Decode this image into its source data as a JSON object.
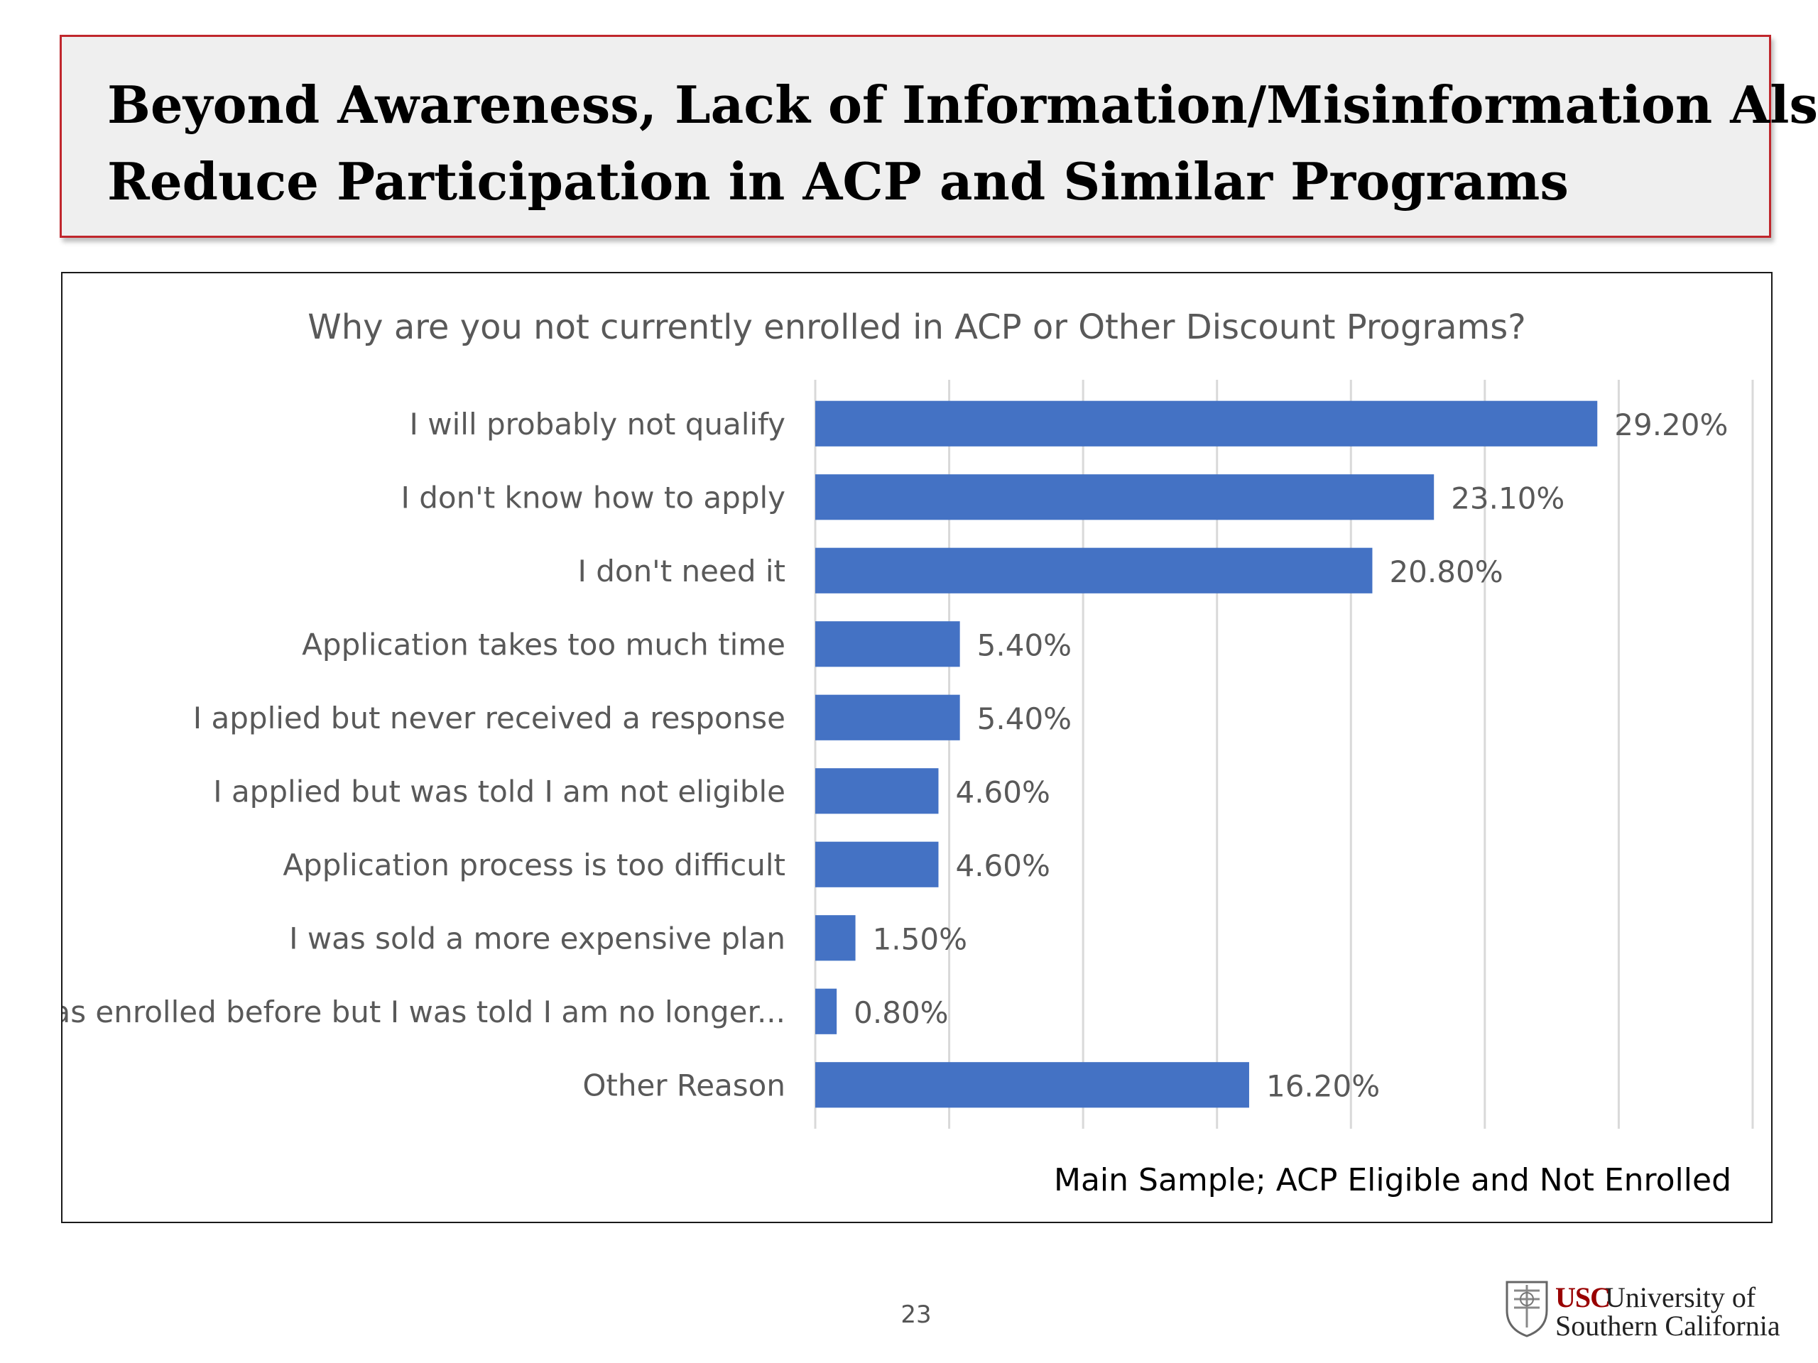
{
  "slide": {
    "title_line_1": "Beyond Awareness, Lack of Information/Misinformation Also",
    "title_line_2": "Reduce Participation in ACP and Similar Programs",
    "page_number": "23"
  },
  "logo": {
    "usc": "USC",
    "line_1": "University of",
    "line_2": "Southern California"
  },
  "colors": {
    "bar": "#4472c4",
    "title_border": "#c0262c",
    "title_background": "#efefef",
    "gridline": "#d9d9d9"
  },
  "chart_data": {
    "type": "bar",
    "orientation": "horizontal",
    "title": "Why are you not currently enrolled in ACP or Other Discount Programs?",
    "categories": [
      "I will probably not qualify",
      "I don't know how to apply",
      "I don't need it",
      "Application takes too much time",
      "I applied but never received a response",
      "I applied but was told I am not eligible",
      "Application process is too difficult",
      "I was sold a more expensive plan",
      "I was enrolled before but I was told I am no longer...",
      "Other Reason"
    ],
    "values": [
      29.2,
      23.1,
      20.8,
      5.4,
      5.4,
      4.6,
      4.6,
      1.5,
      0.8,
      16.2
    ],
    "data_labels": [
      "29.20%",
      "23.10%",
      "20.80%",
      "5.40%",
      "5.40%",
      "4.60%",
      "4.60%",
      "1.50%",
      "0.80%",
      "16.20%"
    ],
    "xlim": [
      0,
      35
    ],
    "grid": true,
    "gridline_step": 5,
    "legend": "none",
    "footnote": "Main Sample; ACP Eligible and Not Enrolled"
  }
}
